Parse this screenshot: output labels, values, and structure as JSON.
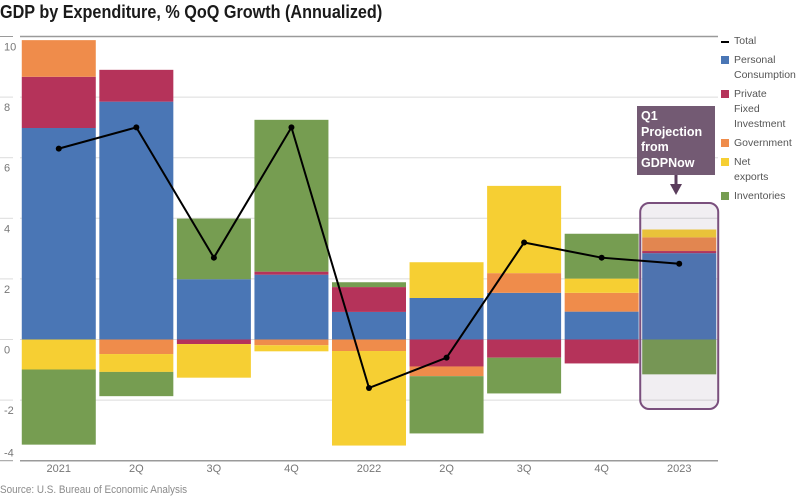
{
  "chart_data": {
    "type": "bar",
    "stacked": true,
    "title": "GDP by Expenditure, % QoQ Growth (Annualized)",
    "source": "Source: U.S. Bureau of Economic Analysis",
    "categories": [
      "2021",
      "2Q",
      "3Q",
      "4Q",
      "2022",
      "2Q",
      "3Q",
      "4Q",
      "2023"
    ],
    "ylim": [
      -4,
      10
    ],
    "yticks": [
      "10",
      "8",
      "6",
      "4",
      "2",
      "0",
      "-2",
      "-4"
    ],
    "ytick_values": [
      10,
      8,
      6,
      4,
      2,
      0,
      -2,
      -4
    ],
    "grid": true,
    "legend_position": "right",
    "series": [
      {
        "name": "Personal Consumption",
        "color": "#4a76b5",
        "values": [
          6.98,
          7.85,
          1.99,
          2.14,
          0.91,
          1.37,
          1.54,
          0.92,
          2.85
        ]
      },
      {
        "name": "Private Fixed Investment",
        "color": "#b5335a",
        "values": [
          1.69,
          1.05,
          -0.15,
          0.1,
          0.82,
          -0.89,
          -0.6,
          -0.79,
          0.07
        ]
      },
      {
        "name": "Government",
        "color": "#ef8c4b",
        "values": [
          1.21,
          -0.48,
          0.0,
          -0.19,
          -0.38,
          -0.32,
          0.65,
          0.62,
          0.45
        ]
      },
      {
        "name": "Net exports",
        "color": "#f6cf33",
        "values": [
          -0.99,
          -0.59,
          -1.11,
          -0.2,
          -3.12,
          1.18,
          2.88,
          0.47,
          0.26
        ]
      },
      {
        "name": "Inventories",
        "color": "#769d51",
        "values": [
          -2.48,
          -0.8,
          2.0,
          5.01,
          0.16,
          -1.89,
          -1.18,
          1.48,
          -1.15
        ]
      }
    ],
    "total": {
      "name": "Total",
      "color": "#000000",
      "values": [
        6.3,
        7.0,
        2.7,
        7.0,
        -1.6,
        -0.6,
        3.2,
        2.7,
        2.5
      ]
    },
    "annotation": {
      "text": "Q1 Projection from GDPNow",
      "lines": [
        "Q1",
        "Projection",
        "from",
        "GDPNow"
      ],
      "color": "#735a73",
      "highlight_category": "2023"
    }
  }
}
